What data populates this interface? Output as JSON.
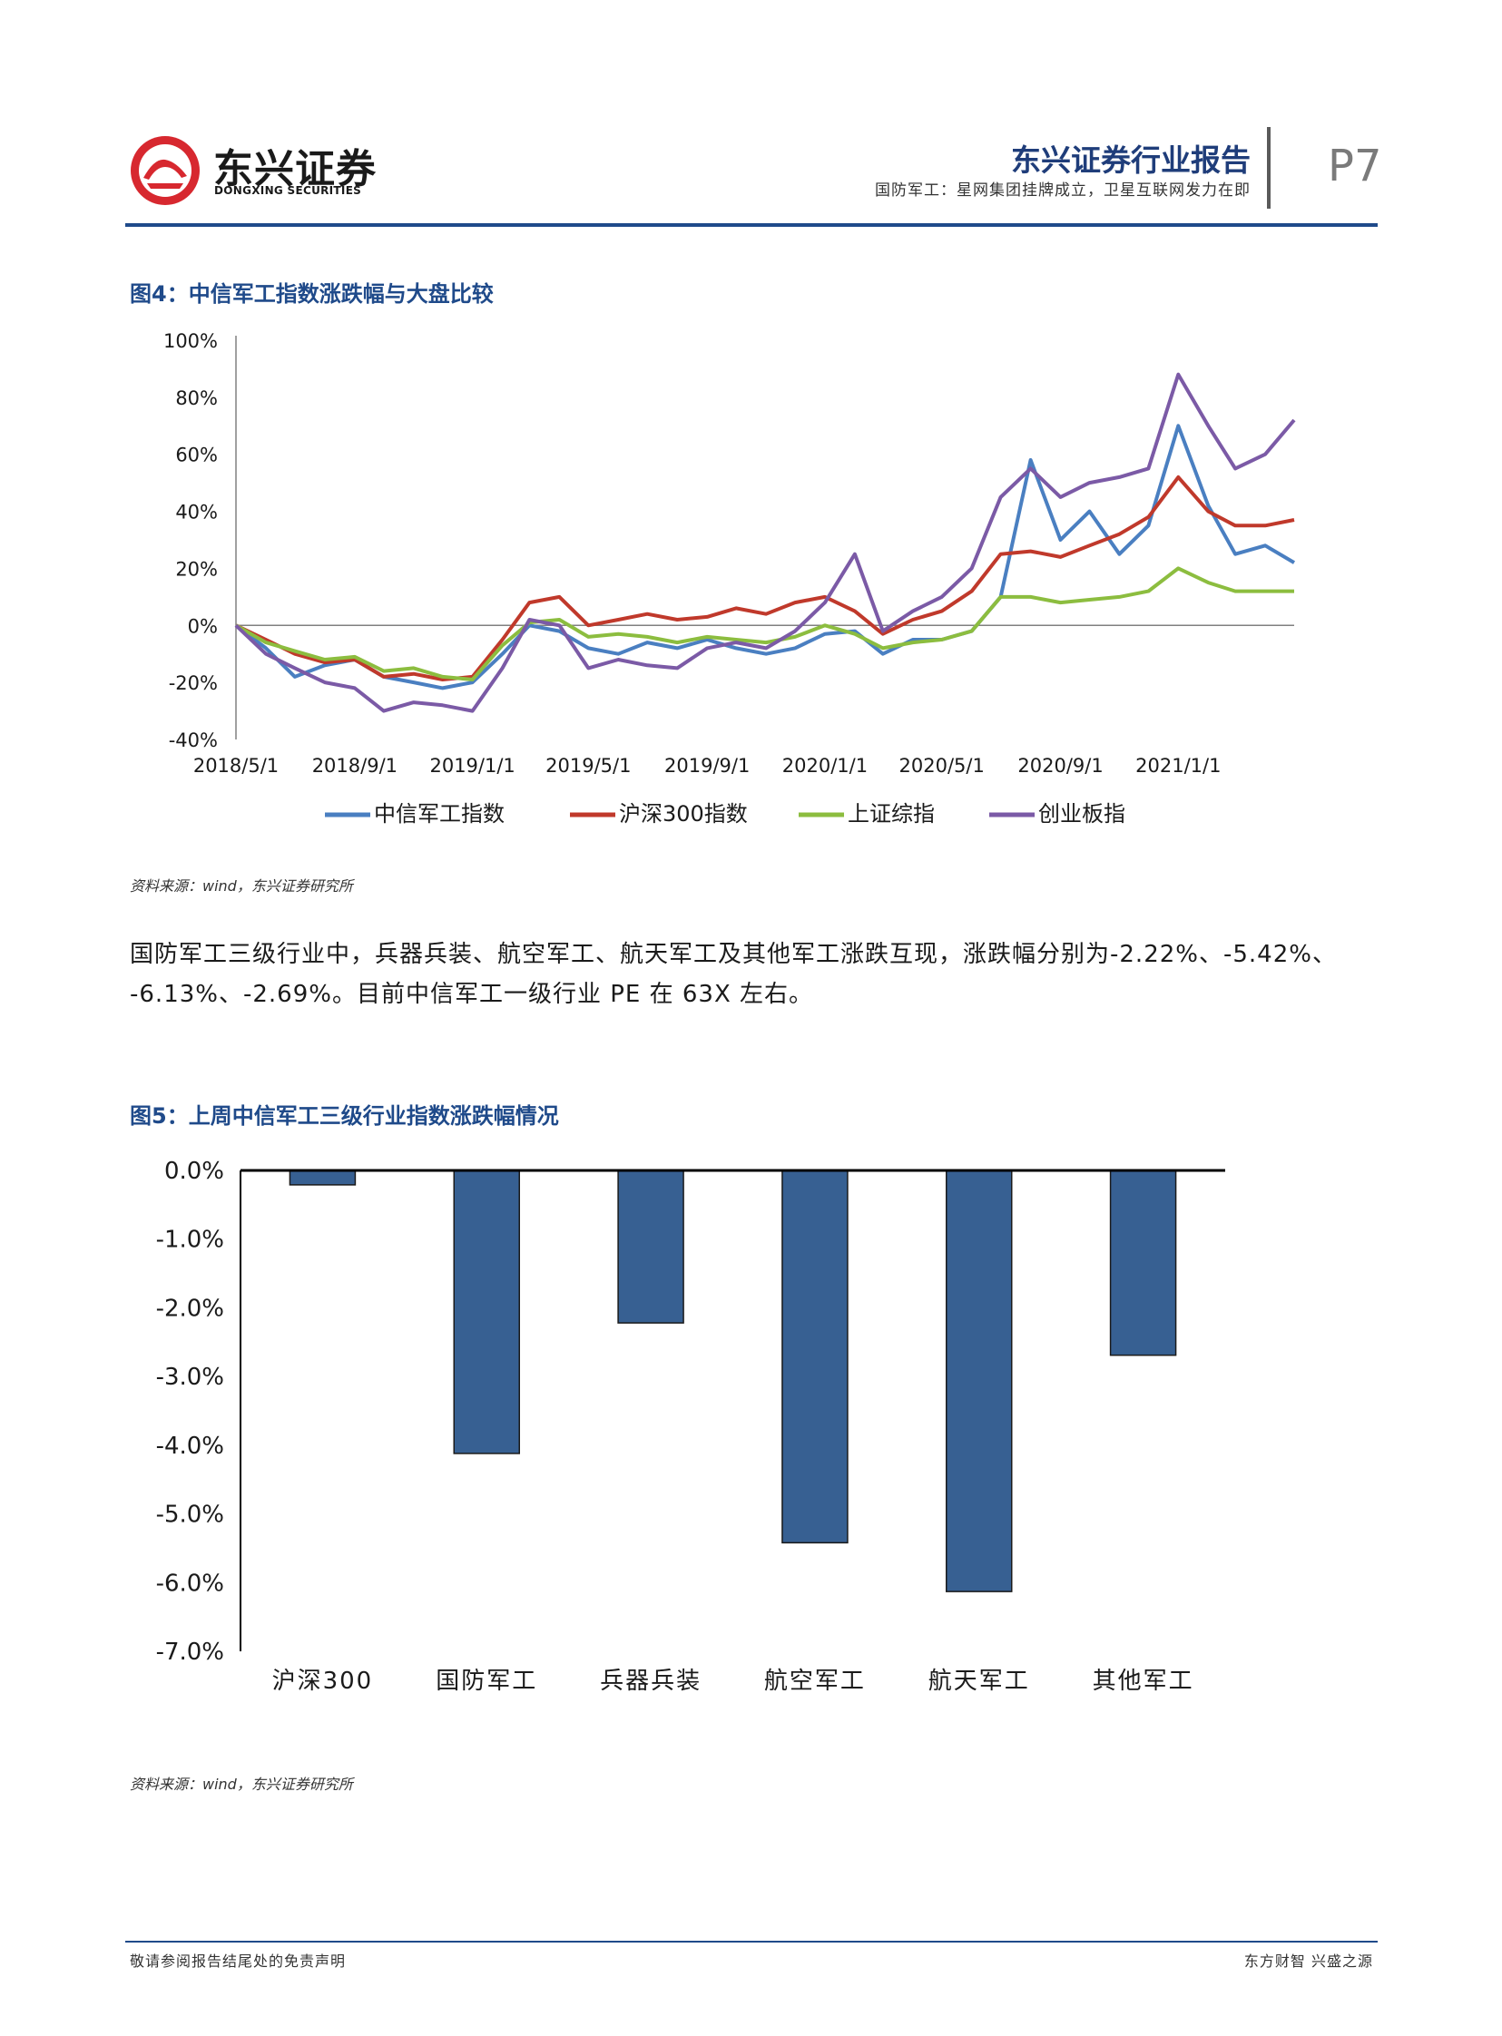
{
  "header": {
    "logo_cn": "东兴证券",
    "logo_en": "DONGXING SECURITIES",
    "report_title": "东兴证券行业报告",
    "report_subtitle": "国防军工：星网集团挂牌成立，卫星互联网发力在即",
    "page_number": "P7"
  },
  "figure4": {
    "title": "图4：中信军工指数涨跌幅与大盘比较",
    "source": "资料来源：wind，东兴证券研究所"
  },
  "figure5": {
    "title": "图5：上周中信军工三级行业指数涨跌幅情况",
    "source": "资料来源：wind，东兴证券研究所"
  },
  "body": {
    "paragraph_line1": "国防军工三级行业中，兵器兵装、航空军工、航天军工及其他军工涨跌互现，涨跌幅分别为-2.22%、-5.42%、",
    "paragraph_line2": "-6.13%、-2.69%。目前中信军工一级行业 PE 在 63X 左右。"
  },
  "footer": {
    "left": "敬请参阅报告结尾处的免责声明",
    "right": "东方财智 兴盛之源"
  },
  "colors": {
    "brand_blue": "#1f4a8a",
    "bar_fill": "#376092"
  },
  "chart_data": [
    {
      "type": "line",
      "x_tick_labels": [
        "2018/5/1",
        "2018/9/1",
        "2019/1/1",
        "2019/5/1",
        "2019/9/1",
        "2020/1/1",
        "2020/5/1",
        "2020/9/1",
        "2021/1/1"
      ],
      "ylim": [
        -40,
        100
      ],
      "y_tick_labels": [
        "100%",
        "80%",
        "60%",
        "40%",
        "20%",
        "0%",
        "-20%",
        "-40%"
      ],
      "y_unit": "%",
      "legend": "bottom",
      "series": [
        {
          "name": "中信军工指数",
          "color": "#4a7fc1",
          "x": [
            "2018/5/1",
            "2018/6/1",
            "2018/7/1",
            "2018/8/1",
            "2018/9/1",
            "2018/10/1",
            "2018/11/1",
            "2018/12/1",
            "2019/1/1",
            "2019/2/1",
            "2019/3/1",
            "2019/4/1",
            "2019/5/1",
            "2019/6/1",
            "2019/7/1",
            "2019/8/1",
            "2019/9/1",
            "2019/10/1",
            "2019/11/1",
            "2019/12/1",
            "2020/1/1",
            "2020/2/1",
            "2020/3/1",
            "2020/4/1",
            "2020/5/1",
            "2020/6/1",
            "2020/7/1",
            "2020/8/1",
            "2020/9/1",
            "2020/10/1",
            "2020/11/1",
            "2020/12/1",
            "2021/1/1",
            "2021/2/1",
            "2021/3/1",
            "2021/4/1",
            "2021/5/1"
          ],
          "values": [
            0,
            -8,
            -18,
            -14,
            -12,
            -18,
            -20,
            -22,
            -20,
            -10,
            0,
            -2,
            -8,
            -10,
            -6,
            -8,
            -5,
            -8,
            -10,
            -8,
            -3,
            -2,
            -10,
            -5,
            -5,
            -2,
            10,
            58,
            30,
            40,
            25,
            35,
            70,
            42,
            25,
            28,
            22
          ]
        },
        {
          "name": "沪深300指数",
          "color": "#c0392b",
          "x": [
            "2018/5/1",
            "2018/6/1",
            "2018/7/1",
            "2018/8/1",
            "2018/9/1",
            "2018/10/1",
            "2018/11/1",
            "2018/12/1",
            "2019/1/1",
            "2019/2/1",
            "2019/3/1",
            "2019/4/1",
            "2019/5/1",
            "2019/6/1",
            "2019/7/1",
            "2019/8/1",
            "2019/9/1",
            "2019/10/1",
            "2019/11/1",
            "2019/12/1",
            "2020/1/1",
            "2020/2/1",
            "2020/3/1",
            "2020/4/1",
            "2020/5/1",
            "2020/6/1",
            "2020/7/1",
            "2020/8/1",
            "2020/9/1",
            "2020/10/1",
            "2020/11/1",
            "2020/12/1",
            "2021/1/1",
            "2021/2/1",
            "2021/3/1",
            "2021/4/1",
            "2021/5/1"
          ],
          "values": [
            0,
            -5,
            -10,
            -13,
            -12,
            -18,
            -17,
            -19,
            -18,
            -5,
            8,
            10,
            0,
            2,
            4,
            2,
            3,
            6,
            4,
            8,
            10,
            5,
            -3,
            2,
            5,
            12,
            25,
            26,
            24,
            28,
            32,
            38,
            52,
            40,
            35,
            35,
            37
          ]
        },
        {
          "name": "上证综指",
          "color": "#8cbd3f",
          "x": [
            "2018/5/1",
            "2018/6/1",
            "2018/7/1",
            "2018/8/1",
            "2018/9/1",
            "2018/10/1",
            "2018/11/1",
            "2018/12/1",
            "2019/1/1",
            "2019/2/1",
            "2019/3/1",
            "2019/4/1",
            "2019/5/1",
            "2019/6/1",
            "2019/7/1",
            "2019/8/1",
            "2019/9/1",
            "2019/10/1",
            "2019/11/1",
            "2019/12/1",
            "2020/1/1",
            "2020/2/1",
            "2020/3/1",
            "2020/4/1",
            "2020/5/1",
            "2020/6/1",
            "2020/7/1",
            "2020/8/1",
            "2020/9/1",
            "2020/10/1",
            "2020/11/1",
            "2020/12/1",
            "2021/1/1",
            "2021/2/1",
            "2021/3/1",
            "2021/4/1",
            "2021/5/1"
          ],
          "values": [
            0,
            -6,
            -9,
            -12,
            -11,
            -16,
            -15,
            -18,
            -19,
            -7,
            1,
            2,
            -4,
            -3,
            -4,
            -6,
            -4,
            -5,
            -6,
            -4,
            0,
            -3,
            -8,
            -6,
            -5,
            -2,
            10,
            10,
            8,
            9,
            10,
            12,
            20,
            15,
            12,
            12,
            12
          ]
        },
        {
          "name": "创业板指",
          "color": "#7b5aa6",
          "x": [
            "2018/5/1",
            "2018/6/1",
            "2018/7/1",
            "2018/8/1",
            "2018/9/1",
            "2018/10/1",
            "2018/11/1",
            "2018/12/1",
            "2019/1/1",
            "2019/2/1",
            "2019/3/1",
            "2019/4/1",
            "2019/5/1",
            "2019/6/1",
            "2019/7/1",
            "2019/8/1",
            "2019/9/1",
            "2019/10/1",
            "2019/11/1",
            "2019/12/1",
            "2020/1/1",
            "2020/2/1",
            "2020/3/1",
            "2020/4/1",
            "2020/5/1",
            "2020/6/1",
            "2020/7/1",
            "2020/8/1",
            "2020/9/1",
            "2020/10/1",
            "2020/11/1",
            "2020/12/1",
            "2021/1/1",
            "2021/2/1",
            "2021/3/1",
            "2021/4/1",
            "2021/5/1"
          ],
          "values": [
            0,
            -10,
            -15,
            -20,
            -22,
            -30,
            -27,
            -28,
            -30,
            -15,
            2,
            0,
            -15,
            -12,
            -14,
            -15,
            -8,
            -6,
            -8,
            -2,
            8,
            25,
            -2,
            5,
            10,
            20,
            45,
            55,
            45,
            50,
            52,
            55,
            88,
            70,
            55,
            60,
            72
          ]
        }
      ]
    },
    {
      "type": "bar",
      "categories": [
        "沪深300",
        "国防军工",
        "兵器兵装",
        "航空军工",
        "航天军工",
        "其他军工"
      ],
      "values": [
        -0.21,
        -4.12,
        -2.22,
        -5.42,
        -6.13,
        -2.69
      ],
      "ylim": [
        -7,
        0
      ],
      "y_tick_labels": [
        "0.0%",
        "-1.0%",
        "-2.0%",
        "-3.0%",
        "-4.0%",
        "-5.0%",
        "-6.0%",
        "-7.0%"
      ],
      "y_unit": "%"
    }
  ]
}
